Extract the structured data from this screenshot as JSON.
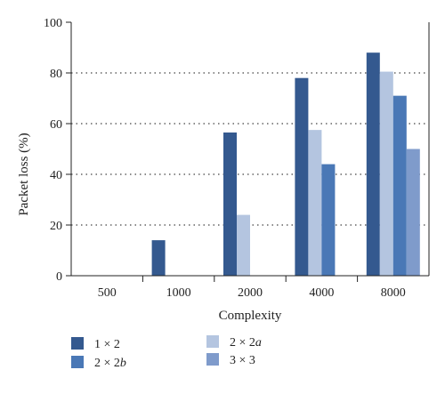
{
  "chart_data": {
    "type": "bar",
    "title": "",
    "xlabel": "Complexity",
    "ylabel": "Packet loss (%)",
    "ylim": [
      0,
      100
    ],
    "yticks": [
      "0",
      "20",
      "40",
      "60",
      "80",
      "100"
    ],
    "grid": true,
    "legend_position": "bottom",
    "categories": [
      "500",
      "1000",
      "2000",
      "4000",
      "8000"
    ],
    "series": [
      {
        "name": "1 × 2",
        "name_base": "1 × 2",
        "name_suffix": "",
        "color": "#34598f",
        "values": [
          0,
          14,
          56.5,
          78,
          88
        ]
      },
      {
        "name": "2 × 2a",
        "name_base": "2 × 2",
        "name_suffix": "a",
        "color": "#b4c5e0",
        "values": [
          0,
          0,
          24,
          57.5,
          80.5
        ]
      },
      {
        "name": "2 × 2b",
        "name_base": "2 × 2",
        "name_suffix": "b",
        "color": "#4a78b6",
        "values": [
          0,
          0,
          0,
          44,
          71
        ]
      },
      {
        "name": "3 × 3",
        "name_base": "3 × 3",
        "name_suffix": "",
        "color": "#7f9bcb",
        "values": [
          0,
          0,
          0,
          0,
          50
        ]
      }
    ]
  }
}
